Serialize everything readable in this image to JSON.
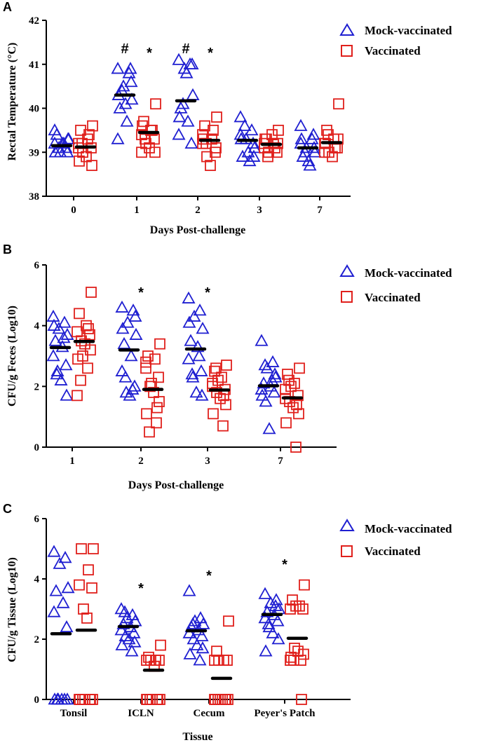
{
  "colors": {
    "mock": "#1f1fd1",
    "vaccinated": "#e0201c",
    "median": "#000000",
    "axis": "#000000"
  },
  "legend": {
    "mock_label": "Mock-vaccinated",
    "vaccinated_label": "Vaccinated"
  },
  "chart_data": [
    {
      "panel": "A",
      "type": "scatter",
      "xlabel": "Days Post-challenge",
      "ylabel": "Rectal Temperature (°C)",
      "ylim": [
        38,
        42
      ],
      "yticks": [
        "38",
        "39",
        "40",
        "41",
        "42"
      ],
      "categories": [
        "0",
        "1",
        "2",
        "3",
        "7"
      ],
      "series": [
        {
          "name": "Mock-vaccinated",
          "marker": "triangle",
          "values": [
            [
              39.2,
              39.1,
              39.0,
              39.3,
              39.4,
              39.2,
              39.5,
              39.0,
              39.1,
              39.2,
              39.3,
              39.0
            ],
            [
              40.9,
              40.8,
              40.5,
              40.2,
              40.0,
              39.7,
              39.3,
              40.9,
              40.4,
              40.1,
              40.6,
              40.3
            ],
            [
              41.1,
              41.0,
              40.9,
              40.3,
              40.0,
              39.7,
              39.4,
              39.2,
              40.1,
              40.8,
              41.0,
              39.8
            ],
            [
              39.8,
              39.5,
              39.3,
              39.1,
              38.9,
              38.8,
              39.4,
              39.2,
              39.6,
              39.0,
              38.9,
              39.3
            ],
            [
              39.6,
              39.3,
              39.1,
              39.0,
              38.9,
              38.7,
              39.2,
              39.4,
              39.0,
              38.8,
              39.1,
              39.3
            ]
          ],
          "medians": [
            39.15,
            40.3,
            40.17,
            39.27,
            39.1
          ]
        },
        {
          "name": "Vaccinated",
          "marker": "square",
          "values": [
            [
              39.6,
              39.5,
              39.3,
              39.2,
              39.1,
              39.0,
              38.9,
              38.7,
              38.8,
              39.4,
              39.2,
              39.1
            ],
            [
              40.1,
              39.7,
              39.5,
              39.4,
              39.3,
              39.2,
              39.1,
              39.0,
              39.6,
              39.5,
              39.3,
              39.0
            ],
            [
              39.8,
              39.6,
              39.3,
              39.2,
              39.0,
              38.9,
              38.7,
              39.1,
              39.3,
              39.5,
              39.2,
              39.4
            ],
            [
              39.5,
              39.3,
              39.2,
              39.1,
              39.0,
              39.0,
              39.4,
              39.2,
              39.3,
              39.1,
              38.9,
              39.2
            ],
            [
              40.1,
              39.5,
              39.3,
              39.2,
              39.1,
              39.0,
              38.9,
              39.3,
              39.2,
              39.1,
              39.4,
              39.0
            ]
          ],
          "medians": [
            39.12,
            39.45,
            39.27,
            39.18,
            39.22
          ]
        }
      ],
      "annotations": [
        {
          "category": "1",
          "series": "Mock-vaccinated",
          "text": "#"
        },
        {
          "category": "1",
          "series": "Vaccinated",
          "text": "*"
        },
        {
          "category": "2",
          "series": "Mock-vaccinated",
          "text": "#"
        },
        {
          "category": "2",
          "series": "Vaccinated",
          "text": "*"
        }
      ]
    },
    {
      "panel": "B",
      "type": "scatter",
      "xlabel": "Days Post-challenge",
      "ylabel": "CFU/g Feces (Log10)",
      "ylim": [
        0,
        6
      ],
      "yticks": [
        "0",
        "2",
        "4",
        "6"
      ],
      "categories": [
        "1",
        "2",
        "3",
        "7"
      ],
      "series": [
        {
          "name": "Mock-vaccinated",
          "marker": "triangle",
          "values": [
            [
              4.3,
              4.1,
              3.9,
              3.7,
              3.5,
              3.3,
              3.0,
              2.7,
              2.5,
              2.2,
              1.7,
              4.0,
              3.6,
              2.4
            ],
            [
              4.6,
              4.5,
              4.1,
              3.7,
              3.4,
              3.0,
              2.5,
              2.0,
              1.8,
              1.7,
              4.3,
              3.9,
              1.9,
              2.3
            ],
            [
              4.9,
              4.5,
              4.3,
              3.9,
              3.5,
              3.3,
              2.9,
              2.5,
              2.3,
              1.8,
              1.7,
              4.1,
              3.0,
              2.4
            ],
            [
              3.5,
              2.8,
              2.6,
              2.3,
              2.1,
              2.0,
              1.9,
              1.8,
              1.5,
              0.6,
              2.4,
              1.7,
              2.2,
              2.7
            ]
          ],
          "medians": [
            3.28,
            3.2,
            3.23,
            2.02
          ]
        },
        {
          "name": "Vaccinated",
          "marker": "square",
          "values": [
            [
              5.1,
              4.4,
              4.0,
              3.8,
              3.7,
              3.5,
              3.4,
              3.2,
              2.9,
              2.6,
              2.2,
              1.7,
              3.9,
              3.0
            ],
            [
              3.4,
              3.0,
              2.9,
              2.6,
              2.3,
              2.0,
              1.8,
              1.5,
              1.1,
              0.8,
              0.5,
              2.8,
              1.3,
              2.1
            ],
            [
              2.7,
              2.5,
              2.3,
              2.1,
              1.9,
              1.8,
              1.6,
              1.4,
              1.1,
              0.7,
              2.6,
              2.0,
              1.7,
              2.2
            ],
            [
              2.6,
              2.4,
              2.1,
              1.9,
              1.7,
              1.5,
              1.3,
              1.1,
              0.8,
              0.0,
              2.2,
              1.6,
              1.4,
              2.0
            ]
          ],
          "medians": [
            3.48,
            1.9,
            1.88,
            1.62
          ]
        }
      ],
      "annotations": [
        {
          "category": "2",
          "text": "*"
        },
        {
          "category": "3",
          "text": "*"
        }
      ]
    },
    {
      "panel": "C",
      "type": "scatter",
      "xlabel": "Tissue",
      "ylabel": "CFU/g Tissue (Log10)",
      "ylim": [
        0,
        6
      ],
      "yticks": [
        "0",
        "2",
        "4",
        "6"
      ],
      "categories": [
        "Tonsil",
        "ICLN",
        "Cecum",
        "Peyer's Patch"
      ],
      "series": [
        {
          "name": "Mock-vaccinated",
          "marker": "triangle",
          "values": [
            [
              4.9,
              4.7,
              4.5,
              3.7,
              3.6,
              3.2,
              2.9,
              2.4,
              0.0,
              0.0,
              0.0,
              0.0,
              0.0,
              0.0
            ],
            [
              3.0,
              2.8,
              2.7,
              2.6,
              2.5,
              2.4,
              2.3,
              2.2,
              2.1,
              2.0,
              1.9,
              1.8,
              1.6,
              2.9
            ],
            [
              3.6,
              2.7,
              2.6,
              2.5,
              2.4,
              2.3,
              2.2,
              2.1,
              2.0,
              1.8,
              1.7,
              1.5,
              1.3,
              2.5
            ],
            [
              3.5,
              3.3,
              3.2,
              3.0,
              2.9,
              2.8,
              2.7,
              2.6,
              2.4,
              2.2,
              2.0,
              1.6,
              3.1,
              2.5
            ]
          ],
          "medians": [
            2.18,
            2.42,
            2.28,
            2.82
          ]
        },
        {
          "name": "Vaccinated",
          "marker": "square",
          "values": [
            [
              5.0,
              5.0,
              4.3,
              3.8,
              3.7,
              3.0,
              2.7,
              0.0,
              0.0,
              0.0,
              0.0,
              0.0,
              0.0,
              0.0
            ],
            [
              1.8,
              1.4,
              1.3,
              1.3,
              1.3,
              1.3,
              1.1,
              0.0,
              0.0,
              0.0,
              0.0,
              0.0,
              0.0,
              0.0
            ],
            [
              2.6,
              1.6,
              1.3,
              1.3,
              1.3,
              1.3,
              0.0,
              0.0,
              0.0,
              0.0,
              0.0,
              0.0,
              0.0,
              0.0
            ],
            [
              3.8,
              3.3,
              3.1,
              3.0,
              3.0,
              1.7,
              1.6,
              1.5,
              1.4,
              1.3,
              1.3,
              1.3,
              0.0,
              3.1
            ]
          ],
          "medians": [
            2.3,
            0.97,
            0.7,
            2.03
          ]
        }
      ],
      "annotations": [
        {
          "category": "ICLN",
          "text": "*"
        },
        {
          "category": "Cecum",
          "text": "*"
        },
        {
          "category": "Peyer's Patch",
          "text": "*"
        }
      ]
    }
  ]
}
